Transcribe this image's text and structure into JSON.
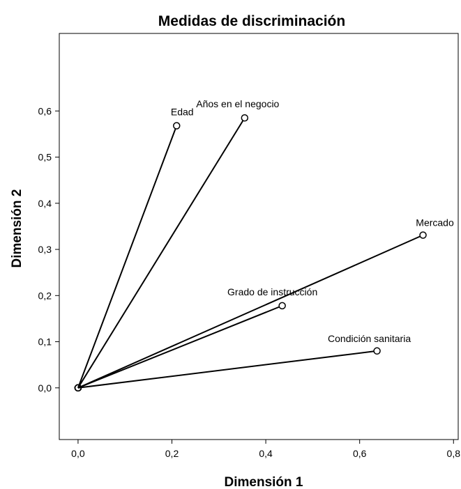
{
  "chart_data": {
    "type": "scatter",
    "title": "Medidas de discriminación",
    "xlabel": "Dimensión 1",
    "ylabel": "Dimensión 2",
    "xlim": [
      -0.04,
      0.81
    ],
    "ylim": [
      -0.112,
      0.768
    ],
    "xticks": [
      0.0,
      0.2,
      0.4,
      0.6,
      0.8
    ],
    "xtick_labels": [
      "0,0",
      "0,2",
      "0,4",
      "0,6",
      "0,8"
    ],
    "yticks": [
      0.0,
      0.1,
      0.2,
      0.3,
      0.4,
      0.5,
      0.6
    ],
    "ytick_labels": [
      "0,0",
      "0,1",
      "0,2",
      "0,3",
      "0,4",
      "0,5",
      "0,6"
    ],
    "grid": false,
    "origin": {
      "x": 0.0,
      "y": 0.0
    },
    "points": [
      {
        "label": "Edad",
        "x": 0.21,
        "y": 0.568
      },
      {
        "label": "Años en el negocio",
        "x": 0.355,
        "y": 0.585
      },
      {
        "label": "Mercado",
        "x": 0.735,
        "y": 0.331
      },
      {
        "label": "Grado de instrucción",
        "x": 0.435,
        "y": 0.178
      },
      {
        "label": "Condición sanitaria",
        "x": 0.637,
        "y": 0.08
      }
    ],
    "line_color": "#000000",
    "marker": "open-circle"
  }
}
